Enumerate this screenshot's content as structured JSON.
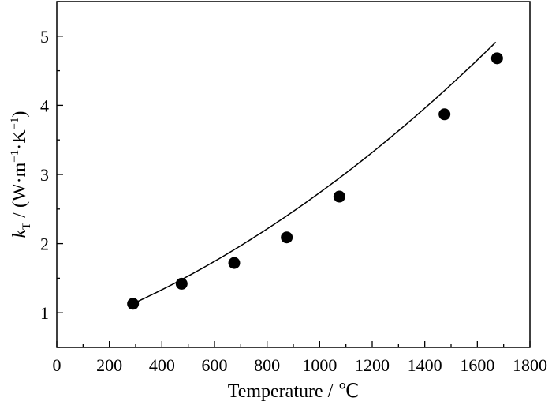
{
  "chart_data": {
    "type": "scatter",
    "xlabel": "Temperature / ℃",
    "ylabel_var": "k",
    "ylabel_sub": "T",
    "ylabel_open": " / (W·m",
    "ylabel_exp1": "−1",
    "ylabel_mid": "·K",
    "ylabel_exp2": "−1",
    "ylabel_close": ")",
    "xlim": [
      0,
      1800
    ],
    "ylim": [
      0.5,
      5.5
    ],
    "x_ticks": [
      "0",
      "200",
      "400",
      "600",
      "800",
      "1000",
      "1200",
      "1400",
      "1600",
      "1800"
    ],
    "y_ticks": [
      "1",
      "2",
      "3",
      "4",
      "5"
    ],
    "grid": false,
    "legend": "none",
    "series": [
      {
        "type": "scatter",
        "points": [
          {
            "x": 290,
            "y": 1.13
          },
          {
            "x": 475,
            "y": 1.42
          },
          {
            "x": 675,
            "y": 1.72
          },
          {
            "x": 875,
            "y": 2.09
          },
          {
            "x": 1075,
            "y": 2.68
          },
          {
            "x": 1475,
            "y": 3.87
          },
          {
            "x": 1675,
            "y": 4.68
          }
        ]
      },
      {
        "type": "line",
        "fit": "quadratic",
        "x_range": [
          290,
          1670
        ],
        "coefficients": [
          0.6847,
          0.001336,
          7.16e-07
        ]
      }
    ]
  }
}
